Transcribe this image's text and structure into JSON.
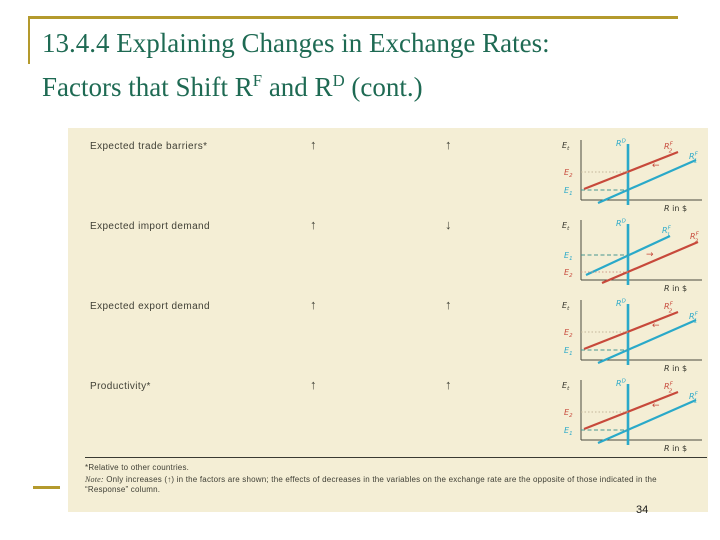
{
  "title": {
    "line1": "13.4.4 Explaining Changes in Exchange Rates:",
    "line2_parts": [
      "Factors that Shift R",
      "F",
      " and R",
      "D",
      " (cont.)"
    ]
  },
  "page_number": "34",
  "colors": {
    "accent_gold": "#b49a2d",
    "title_green": "#1e6a53",
    "table_bg": "#f4eed5",
    "curve_teal": "#2aa9c9",
    "curve_red": "#c7493b",
    "axis_ink": "#4a4a40",
    "label_ink": "#33332b"
  },
  "table": {
    "rows": [
      {
        "factor": "Expected trade barriers*",
        "response_rf": "↑",
        "response_e": "↑",
        "graph": {
          "variant": "shift_left",
          "shift_arrow": "←"
        }
      },
      {
        "factor": "Expected import demand",
        "response_rf": "↑",
        "response_e": "↓",
        "graph": {
          "variant": "shift_right",
          "shift_arrow": "→"
        }
      },
      {
        "factor": "Expected export demand",
        "response_rf": "↑",
        "response_e": "↑",
        "graph": {
          "variant": "shift_left",
          "shift_arrow": "←"
        }
      },
      {
        "factor": "Productivity*",
        "response_rf": "↑",
        "response_e": "↑",
        "graph": {
          "variant": "shift_left",
          "shift_arrow": "←"
        }
      }
    ],
    "footnote1": "*Relative to other countries.",
    "footnote_note_label": "Note:",
    "footnote_note_text": " Only increases (↑) in the factors are shown; the effects of decreases in the variables on the exchange rate are the opposite of those indicated in the “Response” column."
  },
  "graph_labels": {
    "y_axis": {
      "base": "E",
      "sub": "t"
    },
    "demand_curve": {
      "base": "R",
      "sup": "D"
    },
    "foreign_curve_1": {
      "base": "R",
      "sub": "1",
      "sup": "F"
    },
    "foreign_curve_2": {
      "base": "R",
      "sub": "2",
      "sup": "F"
    },
    "e1": {
      "base": "E",
      "sub": "1"
    },
    "e2": {
      "base": "E",
      "sub": "2"
    },
    "x_axis": {
      "base": "R",
      "rest": " in $"
    }
  }
}
